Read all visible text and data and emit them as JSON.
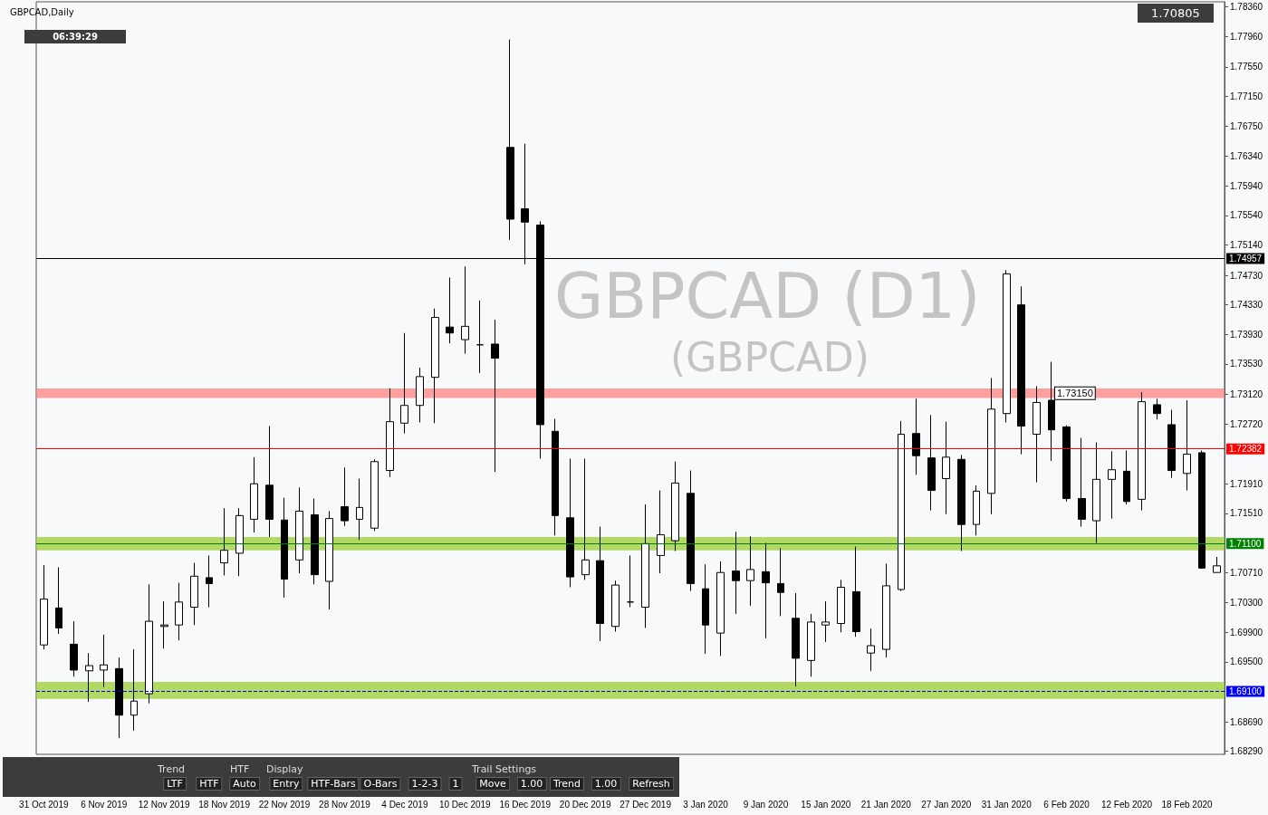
{
  "chart_data": {
    "type": "candlestick",
    "title": "GBPCAD,Daily",
    "color": "#000000",
    "categories": [
      "31 Oct 2019",
      null,
      null,
      null,
      "6 Nov 2019",
      null,
      null,
      null,
      "12 Nov 2019",
      null,
      null,
      null,
      "18 Nov 2019",
      null,
      null,
      null,
      "22 Nov 2019",
      null,
      null,
      null,
      "28 Nov 2019",
      null,
      null,
      null,
      "4 Dec 2019",
      null,
      null,
      null,
      "10 Dec 2019",
      null,
      null,
      null,
      "16 Dec 2019",
      null,
      null,
      null,
      "20 Dec 2019",
      null,
      null,
      null,
      "27 Dec 2019",
      null,
      null,
      null,
      "3 Jan 2020",
      null,
      null,
      null,
      "9 Jan 2020",
      null,
      null,
      null,
      "15 Jan 2020",
      null,
      null,
      null,
      "21 Jan 2020",
      null,
      null,
      null,
      "27 Jan 2020",
      null,
      null,
      null,
      "31 Jan 2020",
      null,
      null,
      null,
      "6 Feb 2020",
      null,
      null,
      null,
      "12 Feb 2020",
      null,
      null,
      null,
      "18 Feb 2020",
      null,
      null
    ],
    "ohlc": [
      [
        1.6973,
        1.7081,
        1.6967,
        1.7035
      ],
      [
        1.7023,
        1.7078,
        1.6988,
        1.6996
      ],
      [
        1.6974,
        1.7005,
        1.693,
        1.6939
      ],
      [
        1.6938,
        1.6962,
        1.6896,
        1.6945
      ],
      [
        1.6939,
        1.6987,
        1.6916,
        1.6946
      ],
      [
        1.6941,
        1.6956,
        1.6847,
        1.6878
      ],
      [
        1.6878,
        1.6967,
        1.6857,
        1.6897
      ],
      [
        1.6907,
        1.7055,
        1.6894,
        1.7005
      ],
      [
        1.6998,
        1.7032,
        1.6968,
        1.7
      ],
      [
        1.7,
        1.7057,
        1.6979,
        1.7031
      ],
      [
        1.7024,
        1.7084,
        1.7,
        1.7066
      ],
      [
        1.7064,
        1.7094,
        1.7024,
        1.7056
      ],
      [
        1.7084,
        1.7158,
        1.7067,
        1.7101
      ],
      [
        1.7097,
        1.7158,
        1.7066,
        1.7148
      ],
      [
        1.7143,
        1.7227,
        1.7125,
        1.7191
      ],
      [
        1.7189,
        1.7269,
        1.7119,
        1.7143
      ],
      [
        1.7142,
        1.7172,
        1.7037,
        1.7062
      ],
      [
        1.7088,
        1.7186,
        1.707,
        1.7154
      ],
      [
        1.7149,
        1.7171,
        1.7055,
        1.7068
      ],
      [
        1.7059,
        1.7154,
        1.7021,
        1.7144
      ],
      [
        1.716,
        1.7213,
        1.7134,
        1.7141
      ],
      [
        1.7143,
        1.7198,
        1.7115,
        1.7159
      ],
      [
        1.7131,
        1.7224,
        1.7127,
        1.7221
      ],
      [
        1.7209,
        1.732,
        1.72,
        1.7275
      ],
      [
        1.7273,
        1.7395,
        1.7259,
        1.7297
      ],
      [
        1.7297,
        1.7348,
        1.7274,
        1.7336
      ],
      [
        1.7335,
        1.7428,
        1.7273,
        1.7416
      ],
      [
        1.7403,
        1.747,
        1.7381,
        1.7395
      ],
      [
        1.7386,
        1.7485,
        1.7367,
        1.7404
      ],
      [
        1.7379,
        1.7439,
        1.7341,
        1.7379
      ],
      [
        1.738,
        1.7413,
        1.7207,
        1.7361
      ],
      [
        1.7646,
        1.7792,
        1.7521,
        1.7549
      ],
      [
        1.7563,
        1.7651,
        1.7488,
        1.7545
      ],
      [
        1.7541,
        1.7546,
        1.7225,
        1.7271
      ],
      [
        1.7262,
        1.7279,
        1.7121,
        1.7148
      ],
      [
        1.7145,
        1.7225,
        1.7051,
        1.7065
      ],
      [
        1.7068,
        1.7225,
        1.7061,
        1.7088
      ],
      [
        1.7087,
        1.7133,
        1.6978,
        1.7002
      ],
      [
        1.6998,
        1.706,
        1.6991,
        1.7054
      ],
      [
        1.7031,
        1.7094,
        1.7024,
        1.7031
      ],
      [
        1.7024,
        1.7163,
        1.6996,
        1.711
      ],
      [
        1.7094,
        1.7182,
        1.707,
        1.7122
      ],
      [
        1.7114,
        1.7221,
        1.71,
        1.7192
      ],
      [
        1.7178,
        1.7209,
        1.7046,
        1.7056
      ],
      [
        1.7049,
        1.7082,
        1.6961,
        1.7
      ],
      [
        1.6989,
        1.7086,
        1.6958,
        1.7071
      ],
      [
        1.7073,
        1.7126,
        1.7015,
        1.706
      ],
      [
        1.706,
        1.712,
        1.7026,
        1.7075
      ],
      [
        1.7072,
        1.7111,
        1.6982,
        1.7057
      ],
      [
        1.7056,
        1.7104,
        1.7012,
        1.7044
      ],
      [
        1.7009,
        1.7043,
        1.6917,
        1.6955
      ],
      [
        1.6952,
        1.7015,
        1.693,
        1.7004
      ],
      [
        1.7,
        1.7032,
        1.6977,
        1.7004
      ],
      [
        1.7002,
        1.7061,
        1.699,
        1.7051
      ],
      [
        1.7045,
        1.7106,
        1.6984,
        1.6991
      ],
      [
        1.6962,
        1.6995,
        1.6938,
        1.6972
      ],
      [
        1.6967,
        1.7083,
        1.6956,
        1.7053
      ],
      [
        1.7048,
        1.7276,
        1.7046,
        1.7258
      ],
      [
        1.7259,
        1.7306,
        1.7203,
        1.7229
      ],
      [
        1.7226,
        1.7284,
        1.7155,
        1.7182
      ],
      [
        1.7198,
        1.7275,
        1.715,
        1.7227
      ],
      [
        1.7224,
        1.723,
        1.71,
        1.7136
      ],
      [
        1.7136,
        1.7189,
        1.7121,
        1.7181
      ],
      [
        1.7178,
        1.7334,
        1.715,
        1.7292
      ],
      [
        1.7286,
        1.748,
        1.7274,
        1.7475
      ],
      [
        1.7433,
        1.7458,
        1.7231,
        1.7269
      ],
      [
        1.7258,
        1.7323,
        1.7193,
        1.7301
      ],
      [
        1.7304,
        1.7356,
        1.7222,
        1.7264
      ],
      [
        1.7268,
        1.727,
        1.7167,
        1.7171
      ],
      [
        1.7171,
        1.7253,
        1.7133,
        1.7143
      ],
      [
        1.7141,
        1.7247,
        1.7111,
        1.7197
      ],
      [
        1.7197,
        1.7235,
        1.7144,
        1.721
      ],
      [
        1.7208,
        1.7236,
        1.7163,
        1.7167
      ],
      [
        1.717,
        1.7315,
        1.7155,
        1.7302
      ],
      [
        1.7298,
        1.7306,
        1.7278,
        1.7286
      ],
      [
        1.7271,
        1.7291,
        1.7199,
        1.7209
      ],
      [
        1.7205,
        1.7304,
        1.7182,
        1.7231
      ],
      [
        1.7233,
        1.7236,
        1.7076,
        1.7077
      ],
      [
        1.7071,
        1.7092,
        1.7071,
        1.708
      ]
    ],
    "ylim": [
      1.6825,
      1.7843
    ],
    "yticks": [
      {
        "value": 1.7836,
        "label": "1.78360"
      },
      {
        "value": 1.7796,
        "label": "1.77960"
      },
      {
        "value": 1.7755,
        "label": "1.77550"
      },
      {
        "value": 1.7715,
        "label": "1.77150"
      },
      {
        "value": 1.7675,
        "label": "1.76750"
      },
      {
        "value": 1.7634,
        "label": "1.76340"
      },
      {
        "value": 1.7594,
        "label": "1.75940"
      },
      {
        "value": 1.7554,
        "label": "1.75540"
      },
      {
        "value": 1.7514,
        "label": "1.75140"
      },
      {
        "value": 1.7473,
        "label": "1.74730"
      },
      {
        "value": 1.7433,
        "label": "1.74330"
      },
      {
        "value": 1.7393,
        "label": "1.73930"
      },
      {
        "value": 1.7353,
        "label": "1.73530"
      },
      {
        "value": 1.7312,
        "label": "1.73120"
      },
      {
        "value": 1.7272,
        "label": "1.72720"
      },
      {
        "value": 1.7191,
        "label": "1.71910"
      },
      {
        "value": 1.7151,
        "label": "1.71510"
      },
      {
        "value": 1.7071,
        "label": "1.70710"
      },
      {
        "value": 1.703,
        "label": "1.70300"
      },
      {
        "value": 1.699,
        "label": "1.69900"
      },
      {
        "value": 1.695,
        "label": "1.69500"
      },
      {
        "value": 1.6869,
        "label": "1.68690"
      },
      {
        "value": 1.6829,
        "label": "1.68290"
      }
    ],
    "ref_lines": [
      {
        "axis": "y",
        "value": 1.74957,
        "label": "1.74957",
        "color": "#000000"
      },
      {
        "axis": "y",
        "value": 1.72382,
        "label": "1.72382",
        "color": "#ff0000"
      },
      {
        "axis": "y",
        "value": 1.711,
        "label": "1.71100",
        "color": "#008000"
      },
      {
        "axis": "y",
        "value": 1.691,
        "label": "1.69100",
        "color": "#0000ff",
        "line_style": "dashed"
      }
    ],
    "bands": [
      {
        "axis": "y",
        "from": 1.7101,
        "to": 1.7119,
        "color": "#9acd32"
      },
      {
        "axis": "y",
        "from": 1.69,
        "to": 1.6923,
        "color": "#9acd32"
      },
      {
        "axis": "y",
        "from": 1.7307,
        "to": 1.732,
        "color": "#ff8080",
        "label": "1.73150"
      }
    ],
    "annotations": [
      "GBPCAD (D1)",
      "(GBPCAD)",
      "06:39:29",
      "1.70805",
      "Trend",
      "LTF",
      "HTF",
      "HTF",
      "Auto",
      "Display",
      "Entry",
      "HTF-Bars",
      "O-Bars",
      "1-2-3",
      "1",
      "Trail Settings",
      "Move",
      "1.00",
      "Trend",
      "1.00",
      "Refresh"
    ]
  }
}
